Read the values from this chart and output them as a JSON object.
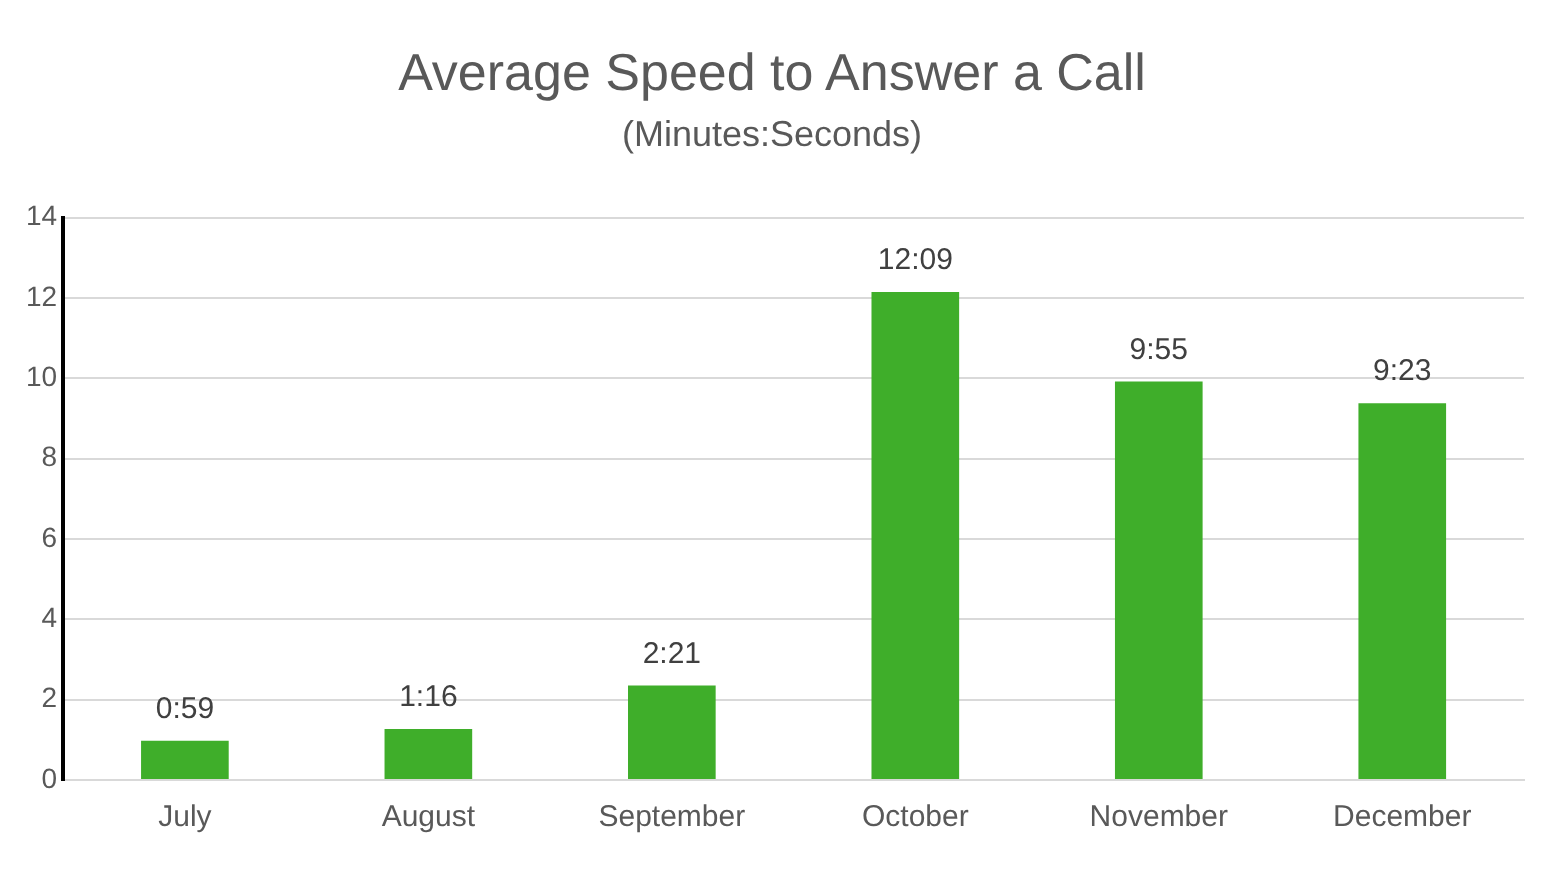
{
  "chart_data": {
    "type": "bar",
    "title": "Average Speed to Answer a Call",
    "subtitle": "(Minutes:Seconds)",
    "categories": [
      "July",
      "August",
      "September",
      "October",
      "November",
      "December"
    ],
    "values": [
      0.98,
      1.27,
      2.35,
      12.15,
      9.92,
      9.38
    ],
    "value_labels": [
      "0:59",
      "1:16",
      "2:21",
      "12:09",
      "9:55",
      "9:23"
    ],
    "color": "#3fae2a",
    "ylim": [
      0,
      14
    ],
    "yticks": [
      0,
      2,
      4,
      6,
      8,
      10,
      12,
      14
    ],
    "grid": "y",
    "legend": false
  }
}
